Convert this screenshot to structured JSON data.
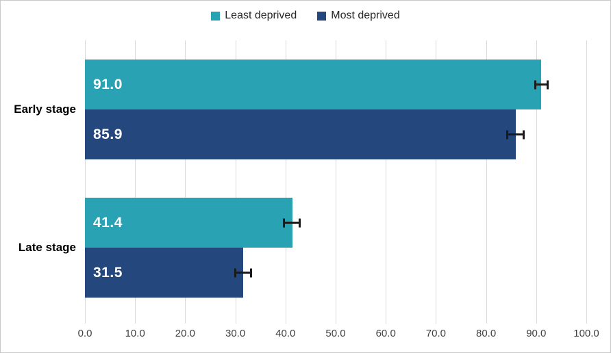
{
  "chart_data": {
    "type": "bar",
    "orientation": "horizontal",
    "title": "",
    "xlabel": "",
    "ylabel": "",
    "categories": [
      "Early stage",
      "Late stage"
    ],
    "series": [
      {
        "name": "Least deprived",
        "color": "#29a2b4",
        "values": [
          91.0,
          41.4
        ],
        "error_low": [
          89.6,
          39.5
        ],
        "error_high": [
          92.5,
          43.0
        ]
      },
      {
        "name": "Most deprived",
        "color": "#24477d",
        "values": [
          85.9,
          31.5
        ],
        "error_low": [
          84.0,
          29.8
        ],
        "error_high": [
          87.7,
          33.3
        ]
      }
    ],
    "value_labels": {
      "Least deprived": [
        "91.0",
        "41.4"
      ],
      "Most deprived": [
        "85.9",
        "31.5"
      ]
    },
    "xlim": [
      0,
      100
    ],
    "x_ticks": [
      {
        "label": "0.0",
        "value": 0
      },
      {
        "label": "10.0",
        "value": 10
      },
      {
        "label": "20.0",
        "value": 20
      },
      {
        "label": "30.0",
        "value": 30
      },
      {
        "label": "40.0",
        "value": 40
      },
      {
        "label": "50.0",
        "value": 50
      },
      {
        "label": "60.0",
        "value": 60
      },
      {
        "label": "70.0",
        "value": 70
      },
      {
        "label": "80.0",
        "value": 80
      },
      {
        "label": "90.0",
        "value": 90
      },
      {
        "label": "100.0",
        "value": 100
      }
    ],
    "grid": "vertical",
    "legend_position": "top",
    "error_bars": true
  },
  "colors": {
    "least_deprived": "#29a2b4",
    "most_deprived": "#24477d",
    "gridline": "#d9d9d9",
    "frame_border": "#c9c9c9",
    "tick_text": "#3f3f3f",
    "category_text": "#000000",
    "value_label_text": "#ffffff",
    "error_bar": "#1a1a1a",
    "background": "#ffffff"
  }
}
